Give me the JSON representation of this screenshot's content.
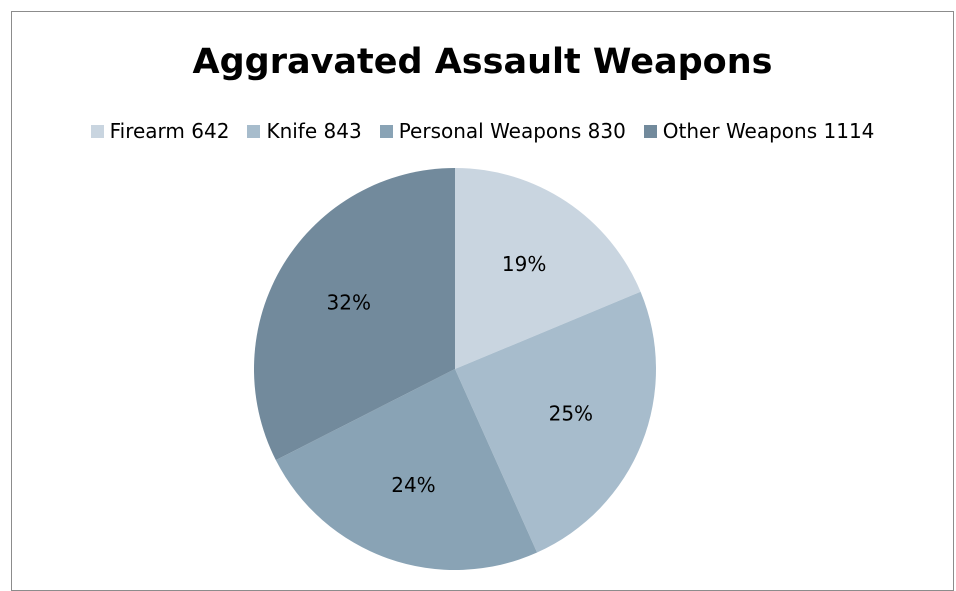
{
  "chart_data": {
    "type": "pie",
    "title": "Aggravated Assault Weapons",
    "legend_position": "top",
    "categories": [
      "Firearm 642",
      "Knife 843",
      "Personal Weapons 830",
      "Other Weapons 1114"
    ],
    "values": [
      642,
      843,
      830,
      1114
    ],
    "percent_labels": [
      "19%",
      "25%",
      "24%",
      "32%"
    ],
    "colors": [
      "#c9d5e0",
      "#a7bccc",
      "#89a3b5",
      "#728a9c"
    ]
  }
}
